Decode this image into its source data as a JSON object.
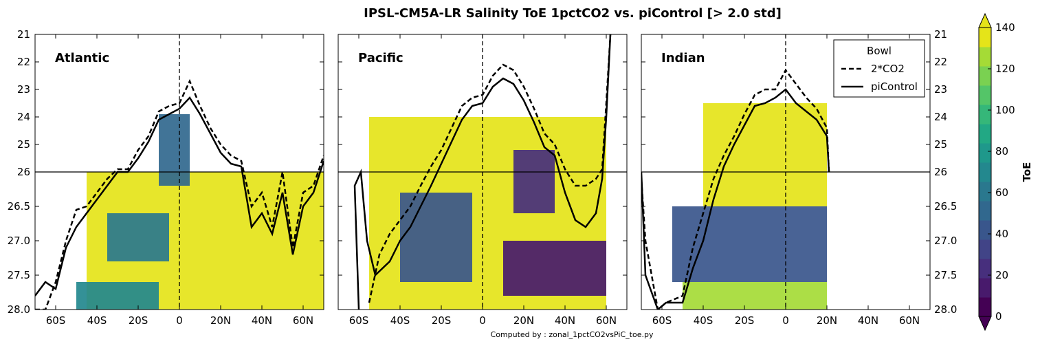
{
  "title": "IPSL-CM5A-LR Salinity ToE 1pctCO2 vs. piControl [> 2.0 std]",
  "credit": "Computed by : zonal_1pctCO2vsPiC_toe.py",
  "colorbar": {
    "label": "ToE",
    "ticks": [
      "0",
      "20",
      "40",
      "60",
      "80",
      "100",
      "120",
      "140"
    ],
    "levels": [
      0,
      10,
      20,
      30,
      40,
      50,
      60,
      70,
      80,
      90,
      100,
      110,
      120,
      130,
      140
    ],
    "colors": [
      "#440154",
      "#481a6c",
      "#472f7d",
      "#414487",
      "#39568c",
      "#31688e",
      "#2a788e",
      "#23888e",
      "#1f988b",
      "#22a884",
      "#35b779",
      "#54c568",
      "#7ad151",
      "#a5db36",
      "#e5e419"
    ],
    "extend": "both"
  },
  "legend": {
    "title": "Bowl",
    "entries": [
      {
        "label": "2*CO2",
        "style": "dashed"
      },
      {
        "label": "piControl",
        "style": "solid"
      }
    ]
  },
  "axes": {
    "y_ticks_upper": [
      "21",
      "22",
      "23",
      "24",
      "25",
      "26"
    ],
    "y_ticks_lower": [
      "26.5",
      "27.0",
      "27.5",
      "28.0"
    ],
    "x_ticks": [
      "60S",
      "40S",
      "20S",
      "0",
      "20N",
      "40N",
      "60N"
    ]
  },
  "chart_data": [
    {
      "type": "heatmap",
      "panel": "Atlantic",
      "x": "latitude",
      "y": "sigma",
      "xlim": [
        -70,
        70
      ],
      "ylim": [
        28.0,
        21
      ],
      "y_split": 26,
      "bowl_2co2": [
        [
          -70,
          28.0
        ],
        [
          -65,
          28.0
        ],
        [
          -60,
          27.6
        ],
        [
          -55,
          27.0
        ],
        [
          -50,
          26.55
        ],
        [
          -45,
          26.5
        ],
        [
          -40,
          26.3
        ],
        [
          -35,
          26.1
        ],
        [
          -30,
          25.9
        ],
        [
          -25,
          25.9
        ],
        [
          -20,
          25.2
        ],
        [
          -15,
          24.7
        ],
        [
          -10,
          23.8
        ],
        [
          -5,
          23.6
        ],
        [
          0,
          23.5
        ],
        [
          5,
          22.7
        ],
        [
          10,
          23.6
        ],
        [
          15,
          24.4
        ],
        [
          20,
          25.0
        ],
        [
          25,
          25.4
        ],
        [
          30,
          25.6
        ],
        [
          35,
          26.5
        ],
        [
          40,
          26.3
        ],
        [
          45,
          26.8
        ],
        [
          50,
          26.0
        ],
        [
          55,
          27.1
        ],
        [
          60,
          26.3
        ],
        [
          65,
          26.2
        ],
        [
          70,
          25.4
        ]
      ],
      "bowl_piControl": [
        [
          -70,
          27.8
        ],
        [
          -65,
          27.6
        ],
        [
          -60,
          27.7
        ],
        [
          -55,
          27.1
        ],
        [
          -50,
          26.8
        ],
        [
          -45,
          26.6
        ],
        [
          -40,
          26.4
        ],
        [
          -35,
          26.2
        ],
        [
          -30,
          26.0
        ],
        [
          -25,
          26.0
        ],
        [
          -20,
          25.5
        ],
        [
          -15,
          24.9
        ],
        [
          -10,
          24.1
        ],
        [
          -5,
          23.9
        ],
        [
          0,
          23.7
        ],
        [
          5,
          23.3
        ],
        [
          10,
          23.9
        ],
        [
          15,
          24.6
        ],
        [
          20,
          25.3
        ],
        [
          25,
          25.7
        ],
        [
          30,
          25.8
        ],
        [
          35,
          26.8
        ],
        [
          40,
          26.6
        ],
        [
          45,
          26.9
        ],
        [
          50,
          26.3
        ],
        [
          55,
          27.2
        ],
        [
          60,
          26.5
        ],
        [
          65,
          26.3
        ],
        [
          70,
          25.6
        ]
      ],
      "toe_regions": [
        {
          "toe": 140,
          "lat_range": [
            -45,
            70
          ],
          "sigma_range": [
            26.0,
            28.0
          ]
        },
        {
          "toe": 55,
          "lat_range": [
            -10,
            5
          ],
          "sigma_range": [
            23.9,
            26.2
          ]
        },
        {
          "toe": 60,
          "lat_range": [
            -35,
            -5
          ],
          "sigma_range": [
            26.6,
            27.3
          ]
        },
        {
          "toe": 70,
          "lat_range": [
            -50,
            -10
          ],
          "sigma_range": [
            27.6,
            28.0
          ]
        }
      ]
    },
    {
      "type": "heatmap",
      "panel": "Pacific",
      "x": "latitude",
      "y": "sigma",
      "xlim": [
        -70,
        70
      ],
      "ylim": [
        28.0,
        21
      ],
      "y_split": 26,
      "bowl_2co2": [
        [
          -55,
          27.9
        ],
        [
          -50,
          27.2
        ],
        [
          -45,
          26.9
        ],
        [
          -40,
          26.7
        ],
        [
          -35,
          26.5
        ],
        [
          -30,
          26.2
        ],
        [
          -25,
          25.8
        ],
        [
          -20,
          25.2
        ],
        [
          -15,
          24.4
        ],
        [
          -10,
          23.6
        ],
        [
          -5,
          23.3
        ],
        [
          0,
          23.2
        ],
        [
          5,
          22.5
        ],
        [
          10,
          22.1
        ],
        [
          15,
          22.3
        ],
        [
          20,
          22.9
        ],
        [
          25,
          23.7
        ],
        [
          30,
          24.6
        ],
        [
          35,
          25.0
        ],
        [
          40,
          25.9
        ],
        [
          45,
          26.2
        ],
        [
          50,
          26.2
        ],
        [
          55,
          26.1
        ],
        [
          58,
          25.9
        ],
        [
          60,
          23.5
        ],
        [
          62,
          21.0
        ]
      ],
      "bowl_piControl": [
        [
          -60,
          28.0
        ],
        [
          -62,
          26.2
        ],
        [
          -59,
          26.0
        ],
        [
          -56,
          27.0
        ],
        [
          -52,
          27.5
        ],
        [
          -45,
          27.3
        ],
        [
          -40,
          27.0
        ],
        [
          -35,
          26.8
        ],
        [
          -30,
          26.5
        ],
        [
          -25,
          26.2
        ],
        [
          -20,
          25.7
        ],
        [
          -15,
          24.9
        ],
        [
          -10,
          24.1
        ],
        [
          -5,
          23.6
        ],
        [
          0,
          23.5
        ],
        [
          5,
          22.9
        ],
        [
          10,
          22.6
        ],
        [
          15,
          22.8
        ],
        [
          20,
          23.4
        ],
        [
          25,
          24.2
        ],
        [
          30,
          25.1
        ],
        [
          35,
          25.4
        ],
        [
          40,
          26.3
        ],
        [
          45,
          26.7
        ],
        [
          50,
          26.8
        ],
        [
          55,
          26.6
        ],
        [
          58,
          26.1
        ],
        [
          60,
          24.0
        ],
        [
          62,
          21.0
        ]
      ],
      "toe_regions": [
        {
          "toe": 140,
          "lat_range": [
            -55,
            60
          ],
          "sigma_range": [
            24.0,
            28.0
          ]
        },
        {
          "toe": 40,
          "lat_range": [
            -40,
            -5
          ],
          "sigma_range": [
            26.3,
            27.6
          ]
        },
        {
          "toe": 15,
          "lat_range": [
            10,
            60
          ],
          "sigma_range": [
            27.0,
            27.8
          ]
        },
        {
          "toe": 25,
          "lat_range": [
            15,
            35
          ],
          "sigma_range": [
            25.2,
            26.6
          ]
        }
      ]
    },
    {
      "type": "heatmap",
      "panel": "Indian",
      "x": "latitude",
      "y": "sigma",
      "xlim": [
        -70,
        70
      ],
      "ylim": [
        28.0,
        21
      ],
      "y_split": 26,
      "bowl_2co2": [
        [
          -70,
          26.1
        ],
        [
          -68,
          27.0
        ],
        [
          -62,
          28.0
        ],
        [
          -58,
          27.9
        ],
        [
          -50,
          27.8
        ],
        [
          -45,
          27.1
        ],
        [
          -40,
          26.6
        ],
        [
          -35,
          26.1
        ],
        [
          -30,
          25.4
        ],
        [
          -25,
          24.7
        ],
        [
          -20,
          23.9
        ],
        [
          -15,
          23.2
        ],
        [
          -10,
          23.0
        ],
        [
          -5,
          23.0
        ],
        [
          0,
          22.3
        ],
        [
          5,
          22.8
        ],
        [
          10,
          23.3
        ],
        [
          15,
          23.7
        ],
        [
          20,
          24.4
        ],
        [
          21,
          26.0
        ]
      ],
      "bowl_piControl": [
        [
          -70,
          26.0
        ],
        [
          -68,
          27.5
        ],
        [
          -62,
          28.0
        ],
        [
          -58,
          27.9
        ],
        [
          -50,
          27.9
        ],
        [
          -45,
          27.4
        ],
        [
          -40,
          27.0
        ],
        [
          -35,
          26.4
        ],
        [
          -30,
          25.8
        ],
        [
          -25,
          25.0
        ],
        [
          -20,
          24.3
        ],
        [
          -15,
          23.6
        ],
        [
          -10,
          23.5
        ],
        [
          -5,
          23.3
        ],
        [
          0,
          23.0
        ],
        [
          5,
          23.5
        ],
        [
          10,
          23.8
        ],
        [
          15,
          24.1
        ],
        [
          20,
          24.7
        ],
        [
          21,
          26.0
        ]
      ],
      "toe_regions": [
        {
          "toe": 140,
          "lat_range": [
            -40,
            20
          ],
          "sigma_range": [
            23.5,
            26.5
          ]
        },
        {
          "toe": 45,
          "lat_range": [
            -55,
            20
          ],
          "sigma_range": [
            26.5,
            27.6
          ]
        },
        {
          "toe": 130,
          "lat_range": [
            -50,
            20
          ],
          "sigma_range": [
            27.6,
            28.0
          ]
        }
      ]
    }
  ]
}
